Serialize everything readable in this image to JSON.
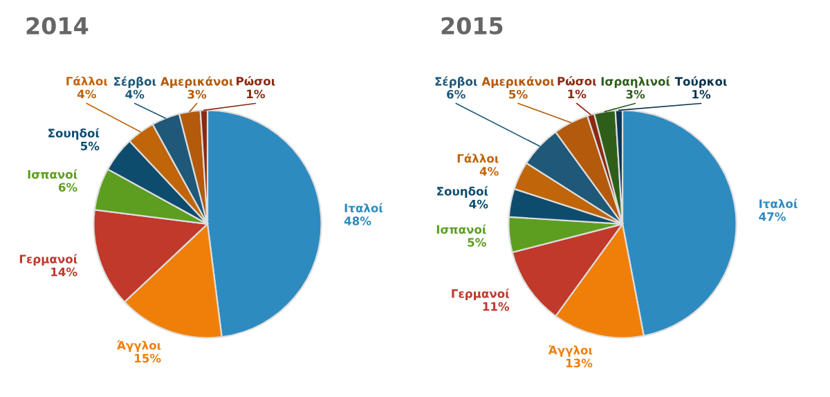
{
  "chart_data": [
    {
      "type": "pie",
      "title": "2014",
      "categories": [
        "Ιταλοί",
        "Άγγλοι",
        "Γερμανοί",
        "Ισπανοί",
        "Σουηδοί",
        "Γάλλοι",
        "Σέρβοι",
        "Αμερικάνοι",
        "Ρώσοι"
      ],
      "values": [
        48,
        15,
        14,
        6,
        5,
        4,
        4,
        3,
        1
      ],
      "value_labels": [
        "48%",
        "15%",
        "14%",
        "6%",
        "5%",
        "4%",
        "4%",
        "3%",
        "1%"
      ],
      "colors": [
        "#2e8bc0",
        "#f07f09",
        "#c0392b",
        "#5c9e1f",
        "#0e4c6e",
        "#c0650a",
        "#1f5878",
        "#b35a0c",
        "#8b2a12"
      ]
    },
    {
      "type": "pie",
      "title": "2015",
      "categories": [
        "Ιταλοί",
        "Άγγλοι",
        "Γερμανοί",
        "Ισπανοί",
        "Σουηδοί",
        "Γάλλοι",
        "Σέρβοι",
        "Αμερικάνοι",
        "Ρώσοι",
        "Ισραηλινοί",
        "Τούρκοι"
      ],
      "values": [
        47,
        13,
        11,
        5,
        4,
        4,
        6,
        5,
        1,
        3,
        1
      ],
      "value_labels": [
        "47%",
        "13%",
        "11%",
        "5%",
        "4%",
        "4%",
        "6%",
        "5%",
        "1%",
        "3%",
        "1%"
      ],
      "colors": [
        "#2e8bc0",
        "#f07f09",
        "#c0392b",
        "#5c9e1f",
        "#0e4c6e",
        "#c0650a",
        "#1f5878",
        "#b35a0c",
        "#8b2a12",
        "#2f5e1a",
        "#0b3550"
      ]
    }
  ]
}
